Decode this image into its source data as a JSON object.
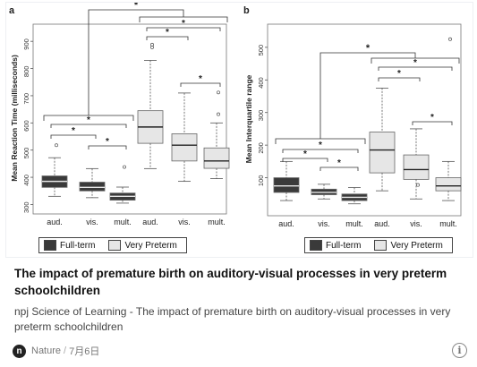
{
  "article": {
    "title": "The impact of premature birth on auditory-visual processes in very preterm schoolchildren",
    "description": "npj Science of Learning - The impact of premature birth on auditory-visual processes in very preterm schoolchildren",
    "source": "Nature",
    "date": "7月6日",
    "source_icon_letter": "n"
  },
  "chart_data": [
    {
      "type": "box",
      "panel_label": "a",
      "title": "",
      "ylabel": "Mean Reaction Time (milliseconds)",
      "xlabel": "",
      "ylim": [
        285,
        950
      ],
      "yticks": [
        300,
        400,
        500,
        600,
        700,
        800,
        900
      ],
      "categories": [
        "aud.",
        "vis.",
        "mult.",
        "aud.",
        "vis.",
        "mult."
      ],
      "groups": [
        "Full-term",
        "Full-term",
        "Full-term",
        "Very Preterm",
        "Very Preterm",
        "Very Preterm"
      ],
      "boxes": [
        {
          "min": 330,
          "q1": 363,
          "median": 385,
          "q3": 405,
          "max": 472,
          "outliers": [
            518
          ]
        },
        {
          "min": 325,
          "q1": 350,
          "median": 363,
          "q3": 382,
          "max": 432,
          "outliers": []
        },
        {
          "min": 305,
          "q1": 316,
          "median": 330,
          "q3": 342,
          "max": 364,
          "outliers": [
            438
          ]
        },
        {
          "min": 432,
          "q1": 525,
          "median": 585,
          "q3": 645,
          "max": 830,
          "outliers": [
            878,
            888
          ]
        },
        {
          "min": 385,
          "q1": 460,
          "median": 518,
          "q3": 560,
          "max": 710,
          "outliers": []
        },
        {
          "min": 395,
          "q1": 433,
          "median": 460,
          "q3": 508,
          "max": 600,
          "outliers": [
            632,
            712
          ]
        }
      ],
      "significance": [
        "*",
        "*",
        "*",
        "*",
        "*",
        "*",
        "*"
      ],
      "legend": [
        "Full-term",
        "Very Preterm"
      ],
      "colors": {
        "Full-term": "#3a3a3a",
        "Very Preterm": "#e6e6e6"
      }
    },
    {
      "type": "box",
      "panel_label": "b",
      "title": "",
      "ylabel": "Mean Interquartile range",
      "xlabel": "",
      "ylim": [
        0,
        560
      ],
      "yticks": [
        100,
        200,
        300,
        400,
        500
      ],
      "categories": [
        "aud.",
        "vis.",
        "mult.",
        "aud.",
        "vis.",
        "mult."
      ],
      "groups": [
        "Full-term",
        "Full-term",
        "Full-term",
        "Very Preterm",
        "Very Preterm",
        "Very Preterm"
      ],
      "boxes": [
        {
          "min": 30,
          "q1": 55,
          "median": 75,
          "q3": 100,
          "max": 150,
          "outliers": []
        },
        {
          "min": 35,
          "q1": 48,
          "median": 55,
          "q3": 65,
          "max": 80,
          "outliers": []
        },
        {
          "min": 20,
          "q1": 30,
          "median": 40,
          "q3": 50,
          "max": 70,
          "outliers": []
        },
        {
          "min": 60,
          "q1": 115,
          "median": 185,
          "q3": 240,
          "max": 375,
          "outliers": []
        },
        {
          "min": 35,
          "q1": 95,
          "median": 125,
          "q3": 170,
          "max": 250,
          "outliers": [
            78
          ]
        },
        {
          "min": 30,
          "q1": 60,
          "median": 75,
          "q3": 100,
          "max": 150,
          "outliers": [
            525
          ]
        }
      ],
      "significance": [
        "*",
        "*",
        "*",
        "*",
        "*",
        "*",
        "*"
      ],
      "legend": [
        "Full-term",
        "Very Preterm"
      ],
      "colors": {
        "Full-term": "#3a3a3a",
        "Very Preterm": "#e6e6e6"
      }
    }
  ]
}
